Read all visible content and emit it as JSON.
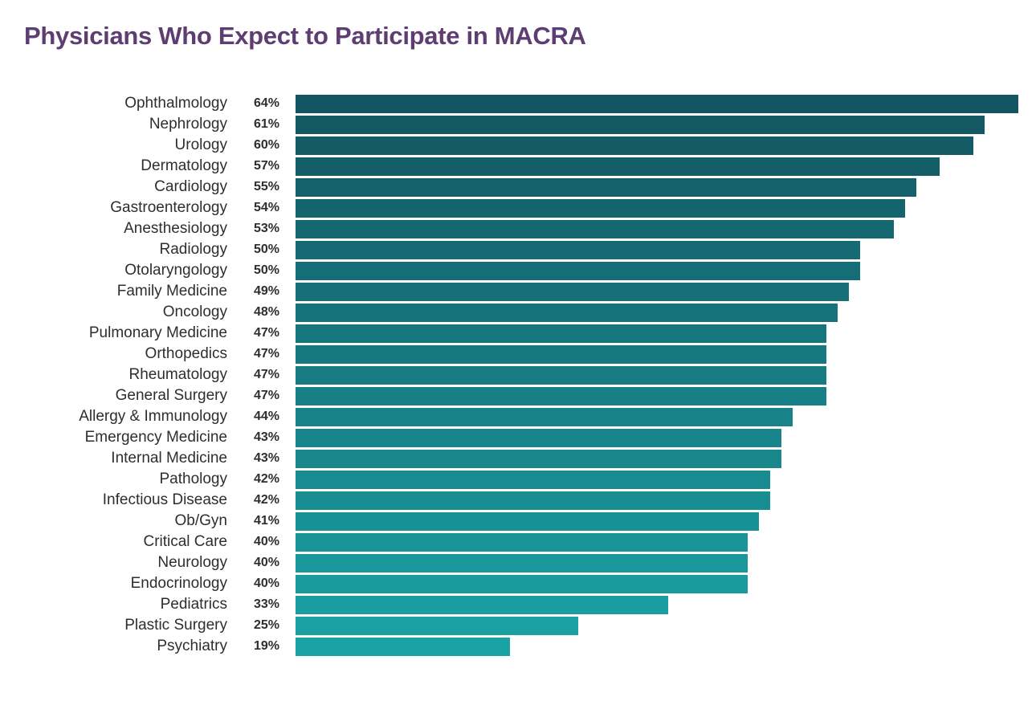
{
  "title": "Physicians Who Expect to Participate in MACRA",
  "chart_data": {
    "type": "bar",
    "orientation": "horizontal",
    "title": "Physicians Who Expect to Participate in MACRA",
    "categories": [
      "Ophthalmology",
      "Nephrology",
      "Urology",
      "Dermatology",
      "Cardiology",
      "Gastroenterology",
      "Anesthesiology",
      "Radiology",
      "Otolaryngology",
      "Family Medicine",
      "Oncology",
      "Pulmonary Medicine",
      "Orthopedics",
      "Rheumatology",
      "General Surgery",
      "Allergy & Immunology",
      "Emergency Medicine",
      "Internal Medicine",
      "Pathology",
      "Infectious Disease",
      "Ob/Gyn",
      "Critical Care",
      "Neurology",
      "Endocrinology",
      "Pediatrics",
      "Plastic Surgery",
      "Psychiatry"
    ],
    "values": [
      64,
      61,
      60,
      57,
      55,
      54,
      53,
      50,
      50,
      49,
      48,
      47,
      47,
      47,
      47,
      44,
      43,
      43,
      42,
      42,
      41,
      40,
      40,
      40,
      33,
      25,
      19
    ],
    "value_suffix": "%",
    "xlim": [
      0,
      64
    ],
    "grid": false,
    "legend": false,
    "colors": {
      "bar_top": "#135560",
      "bar_bottom": "#1aa3a5",
      "title": "#5e3d72",
      "label": "#2e2e2e",
      "background": "#ffffff"
    }
  }
}
